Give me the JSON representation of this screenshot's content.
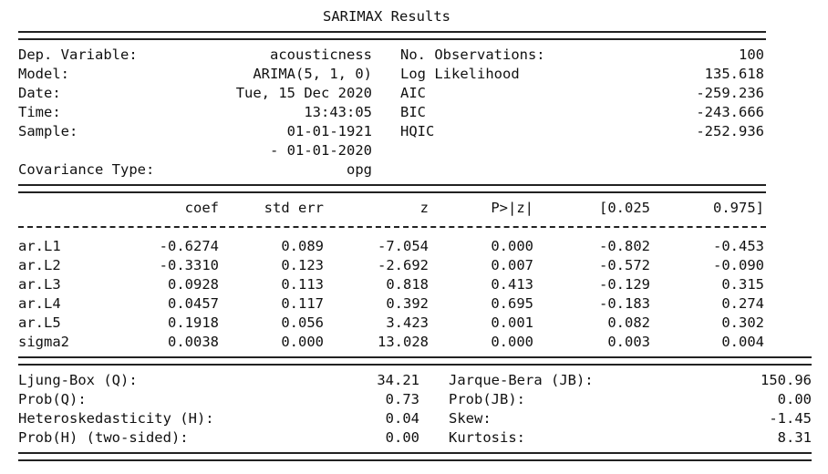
{
  "title": "SARIMAX Results",
  "header": {
    "left": [
      {
        "label": "Dep. Variable:",
        "value": "acousticness"
      },
      {
        "label": "Model:",
        "value": "ARIMA(5, 1, 0)"
      },
      {
        "label": "Date:",
        "value": "Tue, 15 Dec 2020"
      },
      {
        "label": "Time:",
        "value": "13:43:05"
      },
      {
        "label": "Sample:",
        "value": "01-01-1921"
      },
      {
        "label": "",
        "value": "- 01-01-2020"
      },
      {
        "label": "Covariance Type:",
        "value": "opg"
      }
    ],
    "right": [
      {
        "label": "No. Observations:",
        "value": "100"
      },
      {
        "label": "Log Likelihood",
        "value": "135.618"
      },
      {
        "label": "AIC",
        "value": "-259.236"
      },
      {
        "label": "BIC",
        "value": "-243.666"
      },
      {
        "label": "HQIC",
        "value": "-252.936"
      }
    ]
  },
  "coef_table": {
    "columns": [
      "coef",
      "std err",
      "z",
      "P>|z|",
      "[0.025",
      "0.975]"
    ],
    "rows": [
      {
        "name": "ar.L1",
        "cells": [
          "-0.6274",
          "0.089",
          "-7.054",
          "0.000",
          "-0.802",
          "-0.453"
        ]
      },
      {
        "name": "ar.L2",
        "cells": [
          "-0.3310",
          "0.123",
          "-2.692",
          "0.007",
          "-0.572",
          "-0.090"
        ]
      },
      {
        "name": "ar.L3",
        "cells": [
          "0.0928",
          "0.113",
          "0.818",
          "0.413",
          "-0.129",
          "0.315"
        ]
      },
      {
        "name": "ar.L4",
        "cells": [
          "0.0457",
          "0.117",
          "0.392",
          "0.695",
          "-0.183",
          "0.274"
        ]
      },
      {
        "name": "ar.L5",
        "cells": [
          "0.1918",
          "0.056",
          "3.423",
          "0.001",
          "0.082",
          "0.302"
        ]
      },
      {
        "name": "sigma2",
        "cells": [
          "0.0038",
          "0.000",
          "13.028",
          "0.000",
          "0.003",
          "0.004"
        ]
      }
    ]
  },
  "diagnostics": {
    "left": [
      {
        "label": "Ljung-Box (Q):",
        "value": "34.21"
      },
      {
        "label": "Prob(Q):",
        "value": "0.73"
      },
      {
        "label": "Heteroskedasticity (H):",
        "value": "0.04"
      },
      {
        "label": "Prob(H) (two-sided):",
        "value": "0.00"
      }
    ],
    "right": [
      {
        "label": "Jarque-Bera (JB):",
        "value": "150.96"
      },
      {
        "label": "Prob(JB):",
        "value": "0.00"
      },
      {
        "label": "Skew:",
        "value": "-1.45"
      },
      {
        "label": "Kurtosis:",
        "value": "8.31"
      }
    ]
  }
}
